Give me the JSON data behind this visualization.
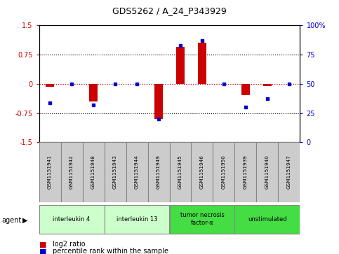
{
  "title": "GDS5262 / A_24_P343929",
  "samples": [
    "GSM1151941",
    "GSM1151942",
    "GSM1151948",
    "GSM1151943",
    "GSM1151944",
    "GSM1151949",
    "GSM1151945",
    "GSM1151946",
    "GSM1151950",
    "GSM1151939",
    "GSM1151940",
    "GSM1151947"
  ],
  "log2_ratio": [
    -0.07,
    0.0,
    -0.45,
    0.0,
    0.0,
    -0.9,
    0.95,
    1.05,
    0.0,
    -0.3,
    -0.05,
    0.0
  ],
  "percentile_rank": [
    34,
    50,
    32,
    50,
    50,
    20,
    83,
    87,
    50,
    30,
    37,
    50
  ],
  "group_info": [
    {
      "start": 0,
      "end": 2,
      "label": "interleukin 4",
      "color": "#ccffcc"
    },
    {
      "start": 3,
      "end": 5,
      "label": "interleukin 13",
      "color": "#ccffcc"
    },
    {
      "start": 6,
      "end": 8,
      "label": "tumor necrosis\nfactor-α",
      "color": "#44dd44"
    },
    {
      "start": 9,
      "end": 11,
      "label": "unstimulated",
      "color": "#44dd44"
    }
  ],
  "ylim": [
    -1.5,
    1.5
  ],
  "yticks_left": [
    -1.5,
    -0.75,
    0.0,
    0.75,
    1.5
  ],
  "yticks_right": [
    0,
    25,
    50,
    75,
    100
  ],
  "bar_color": "#cc0000",
  "dot_color": "#0000cc",
  "zero_line_color": "#cc0000",
  "grid_color": "#000000",
  "sample_box_color": "#cccccc",
  "sample_box_edge": "#888888"
}
